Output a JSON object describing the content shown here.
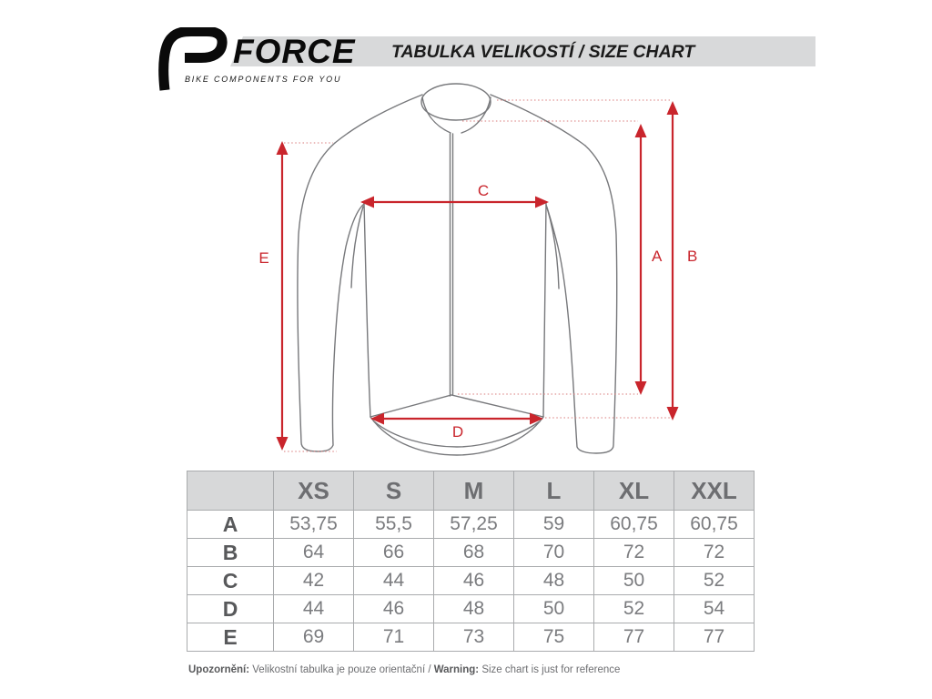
{
  "header": {
    "brand_name": "FORCE",
    "brand_tagline": "BIKE COMPONENTS FOR YOU",
    "title": "TABULKA VELIKOSTÍ / SIZE CHART"
  },
  "diagram": {
    "labels": {
      "A": "A",
      "B": "B",
      "C": "C",
      "D": "D",
      "E": "E"
    }
  },
  "table": {
    "corner": "",
    "columns": [
      "XS",
      "S",
      "M",
      "L",
      "XL",
      "XXL"
    ],
    "rows": [
      {
        "label": "A",
        "values": [
          "53,75",
          "55,5",
          "57,25",
          "59",
          "60,75",
          "60,75"
        ]
      },
      {
        "label": "B",
        "values": [
          "64",
          "66",
          "68",
          "70",
          "72",
          "72"
        ]
      },
      {
        "label": "C",
        "values": [
          "42",
          "44",
          "46",
          "48",
          "50",
          "52"
        ]
      },
      {
        "label": "D",
        "values": [
          "44",
          "46",
          "48",
          "50",
          "52",
          "54"
        ]
      },
      {
        "label": "E",
        "values": [
          "69",
          "71",
          "73",
          "75",
          "77",
          "77"
        ]
      }
    ]
  },
  "chart_data": {
    "type": "table",
    "title": "TABULKA VELIKOSTÍ / SIZE CHART",
    "categories": [
      "XS",
      "S",
      "M",
      "L",
      "XL",
      "XXL"
    ],
    "series": [
      {
        "name": "A",
        "values": [
          53.75,
          55.5,
          57.25,
          59,
          60.75,
          60.75
        ]
      },
      {
        "name": "B",
        "values": [
          64,
          66,
          68,
          70,
          72,
          72
        ]
      },
      {
        "name": "C",
        "values": [
          42,
          44,
          46,
          48,
          50,
          52
        ]
      },
      {
        "name": "D",
        "values": [
          44,
          46,
          48,
          50,
          52,
          54
        ]
      },
      {
        "name": "E",
        "values": [
          69,
          71,
          73,
          75,
          77,
          77
        ]
      }
    ]
  },
  "footer": {
    "warn_cz_bold": "Upozornění:",
    "warn_cz": " Velikostní tabulka je pouze orientační / ",
    "warn_en_bold": "Warning:",
    "warn_en": " Size chart is just for reference"
  },
  "colors": {
    "accent_red": "#c9252c",
    "outline_gray": "#77787b",
    "header_bar_gray": "#d8d9da",
    "table_border": "#a9abad",
    "value_text": "#7b7c7f"
  }
}
